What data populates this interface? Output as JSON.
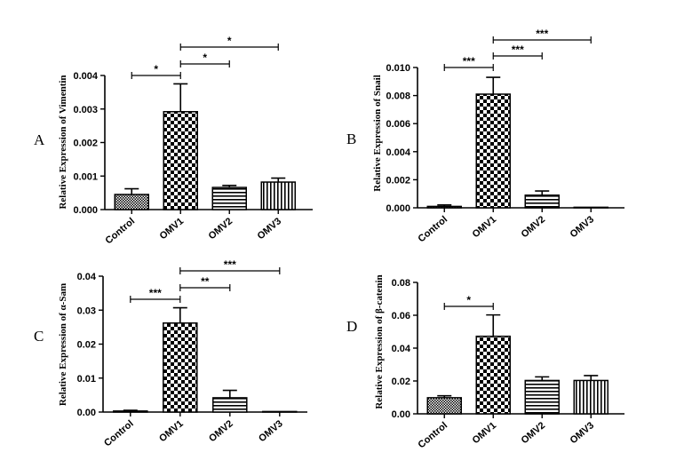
{
  "chart_data": [
    {
      "panel": "A",
      "type": "bar",
      "ylabel": "Relative Expression of Vimentin",
      "categories": [
        "Control",
        "OMV1",
        "OMV2",
        "OMV3"
      ],
      "values": [
        0.00045,
        0.00292,
        0.00066,
        0.00082
      ],
      "errors": [
        0.00017,
        0.00083,
        6e-05,
        0.00012
      ],
      "ylim": [
        0,
        0.004
      ],
      "yticks": [
        "0.000",
        "0.001",
        "0.002",
        "0.003",
        "0.004"
      ],
      "patterns": [
        "dense",
        "checker",
        "hlines",
        "vlines"
      ],
      "brackets": [
        {
          "from": 0,
          "to": 1,
          "label": "*"
        },
        {
          "from": 1,
          "to": 2,
          "label": "*"
        },
        {
          "from": 1,
          "to": 3,
          "label": "*"
        }
      ]
    },
    {
      "panel": "B",
      "type": "bar",
      "ylabel": "Relative Expression of Snail",
      "categories": [
        "Control",
        "OMV1",
        "OMV2",
        "OMV3"
      ],
      "values": [
        0.0001,
        0.0081,
        0.0009,
        2e-05
      ],
      "errors": [
        0.0001,
        0.0012,
        0.0003,
        0.0
      ],
      "ylim": [
        0,
        0.01
      ],
      "yticks": [
        "0.000",
        "0.002",
        "0.004",
        "0.006",
        "0.008",
        "0.010"
      ],
      "patterns": [
        "dense",
        "checker",
        "hlines",
        "vlines"
      ],
      "brackets": [
        {
          "from": 0,
          "to": 1,
          "label": "***"
        },
        {
          "from": 1,
          "to": 2,
          "label": "***"
        },
        {
          "from": 1,
          "to": 3,
          "label": "***"
        }
      ]
    },
    {
      "panel": "C",
      "type": "bar",
      "ylabel": "Relative Expression of α-Sam",
      "categories": [
        "Control",
        "OMV1",
        "OMV2",
        "OMV3"
      ],
      "values": [
        0.0003,
        0.0262,
        0.0042,
        0.0
      ],
      "errors": [
        0.0002,
        0.0045,
        0.0022,
        0.0
      ],
      "ylim": [
        0,
        0.04
      ],
      "yticks": [
        "0.00",
        "0.01",
        "0.02",
        "0.03",
        "0.04"
      ],
      "patterns": [
        "dense",
        "checker",
        "hlines",
        "vlines"
      ],
      "brackets": [
        {
          "from": 0,
          "to": 1,
          "label": "***"
        },
        {
          "from": 1,
          "to": 2,
          "label": "**"
        },
        {
          "from": 1,
          "to": 3,
          "label": "***"
        }
      ]
    },
    {
      "panel": "D",
      "type": "bar",
      "ylabel": "Relative Expression of β-catenin",
      "categories": [
        "Control",
        "OMV1",
        "OMV2",
        "OMV3"
      ],
      "values": [
        0.0098,
        0.0472,
        0.0203,
        0.0203
      ],
      "errors": [
        0.0012,
        0.013,
        0.0022,
        0.003
      ],
      "ylim": [
        0,
        0.08
      ],
      "yticks": [
        "0.00",
        "0.02",
        "0.04",
        "0.06",
        "0.08"
      ],
      "patterns": [
        "dense",
        "checker",
        "hlines",
        "vlines"
      ],
      "brackets": [
        {
          "from": 0,
          "to": 1,
          "label": "*"
        }
      ]
    }
  ]
}
